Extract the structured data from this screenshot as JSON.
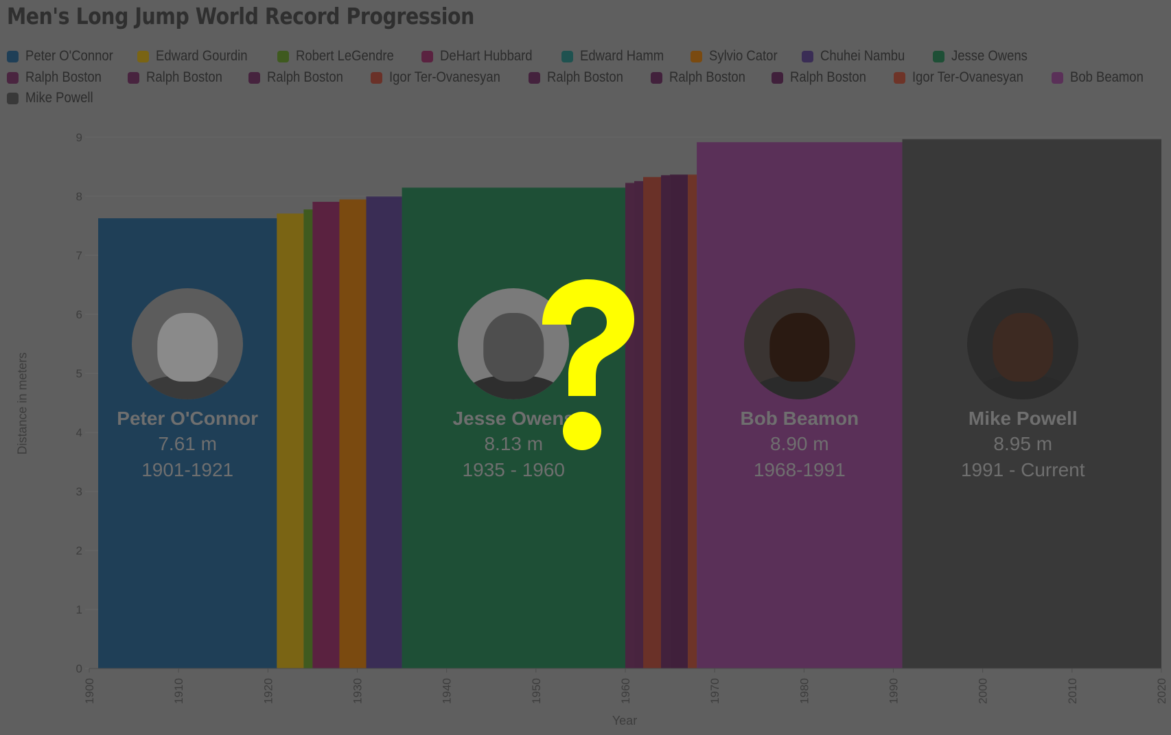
{
  "title": "Men's Long Jump World Record Progression",
  "legend": [
    {
      "name": "Peter O'Connor",
      "color": "#1f3f57"
    },
    {
      "name": "Edward Gourdin",
      "color": "#7a6414"
    },
    {
      "name": "Robert LeGendre",
      "color": "#3f5a1f"
    },
    {
      "name": "DeHart Hubbard",
      "color": "#5a2240"
    },
    {
      "name": "Edward Hamm",
      "color": "#1f5250"
    },
    {
      "name": "Sylvio Cator",
      "color": "#7a4a10"
    },
    {
      "name": "Chuhei Nambu",
      "color": "#3a2d55"
    },
    {
      "name": "Jesse Owens",
      "color": "#1e4f36"
    },
    {
      "name": "Ralph Boston",
      "color": "#4a2540"
    },
    {
      "name": "Ralph Boston",
      "color": "#48243f"
    },
    {
      "name": "Ralph Boston",
      "color": "#46233e"
    },
    {
      "name": "Igor Ter-Ovanesyan",
      "color": "#6a3128"
    },
    {
      "name": "Ralph Boston",
      "color": "#44223d"
    },
    {
      "name": "Ralph Boston",
      "color": "#42213c"
    },
    {
      "name": "Ralph Boston",
      "color": "#40203b"
    },
    {
      "name": "Igor Ter-Ovanesyan",
      "color": "#6e3428"
    },
    {
      "name": "Bob Beamon",
      "color": "#5a3058"
    },
    {
      "name": "Mike Powell",
      "color": "#393939"
    }
  ],
  "chart_data": {
    "type": "area",
    "title": "Men's Long Jump World Record Progression",
    "xlabel": "Year",
    "ylabel": "Distance in meters",
    "xlim": [
      1900,
      2020
    ],
    "ylim": [
      0,
      9
    ],
    "x_ticks": [
      "1900",
      "1910",
      "1920",
      "1930",
      "1940",
      "1950",
      "1960",
      "1970",
      "1980",
      "1990",
      "2000",
      "2010",
      "2020"
    ],
    "y_ticks": [
      "0",
      "1",
      "2",
      "3",
      "4",
      "5",
      "6",
      "7",
      "8",
      "9"
    ],
    "grid": true,
    "legend_position": "top",
    "records": [
      {
        "name": "Peter O'Connor",
        "start": 1901,
        "end": 1921,
        "value": 7.61,
        "color": "#1f3f57"
      },
      {
        "name": "Edward Gourdin",
        "start": 1921,
        "end": 1924,
        "value": 7.69,
        "color": "#7a6414"
      },
      {
        "name": "Robert LeGendre",
        "start": 1924,
        "end": 1925,
        "value": 7.76,
        "color": "#3f5a1f"
      },
      {
        "name": "DeHart Hubbard",
        "start": 1925,
        "end": 1928,
        "value": 7.89,
        "color": "#5a2240"
      },
      {
        "name": "Edward Hamm",
        "start": 1928,
        "end": 1928,
        "value": 7.9,
        "color": "#1f5250"
      },
      {
        "name": "Sylvio Cator",
        "start": 1928,
        "end": 1931,
        "value": 7.93,
        "color": "#7a4a10"
      },
      {
        "name": "Chuhei Nambu",
        "start": 1931,
        "end": 1935,
        "value": 7.98,
        "color": "#3a2d55"
      },
      {
        "name": "Jesse Owens",
        "start": 1935,
        "end": 1960,
        "value": 8.13,
        "color": "#1e4f36"
      },
      {
        "name": "Ralph Boston",
        "start": 1960,
        "end": 1961,
        "value": 8.21,
        "color": "#4a2540"
      },
      {
        "name": "Ralph Boston",
        "start": 1961,
        "end": 1962,
        "value": 8.24,
        "color": "#48243f"
      },
      {
        "name": "Ralph Boston",
        "start": 1962,
        "end": 1962,
        "value": 8.28,
        "color": "#46233e"
      },
      {
        "name": "Igor Ter-Ovanesyan",
        "start": 1962,
        "end": 1964,
        "value": 8.31,
        "color": "#6a3128"
      },
      {
        "name": "Ralph Boston",
        "start": 1964,
        "end": 1964,
        "value": 8.31,
        "color": "#44223d"
      },
      {
        "name": "Ralph Boston",
        "start": 1964,
        "end": 1965,
        "value": 8.34,
        "color": "#42213c"
      },
      {
        "name": "Ralph Boston",
        "start": 1965,
        "end": 1967,
        "value": 8.35,
        "color": "#40203b"
      },
      {
        "name": "Igor Ter-Ovanesyan",
        "start": 1967,
        "end": 1968,
        "value": 8.35,
        "color": "#6e3428"
      },
      {
        "name": "Bob Beamon",
        "start": 1968,
        "end": 1991,
        "value": 8.9,
        "color": "#5a3058"
      },
      {
        "name": "Mike Powell",
        "start": 1991,
        "end": 2020,
        "value": 8.95,
        "color": "#393939"
      }
    ]
  },
  "annotations": [
    {
      "name": "Peter O'Connor",
      "value": "7.61 m",
      "years": "1901-1921",
      "center_year": 1911,
      "face": "#8a8a8a",
      "bg": "#5c5c5c",
      "shoulders": "#3a3a3a"
    },
    {
      "name": "Jesse Owens",
      "value": "8.13 m",
      "years": "1935 - 1960",
      "center_year": 1947.5,
      "face": "#4e4e4e",
      "bg": "#7a7a7a",
      "shoulders": "#2e2e2e"
    },
    {
      "name": "Bob Beamon",
      "value": "8.90 m",
      "years": "1968-1991",
      "center_year": 1979.5,
      "face": "#2a1a12",
      "bg": "#3a3432",
      "shoulders": "#2b2b2b"
    },
    {
      "name": "Mike Powell",
      "value": "8.95 m",
      "years": "1991 - Current",
      "center_year": 2004.5,
      "face": "#3d2a22",
      "bg": "#2c2c2c",
      "shoulders": "#2a2a2a"
    }
  ],
  "overlay": {
    "symbol": "?",
    "color": "#ffff00"
  }
}
